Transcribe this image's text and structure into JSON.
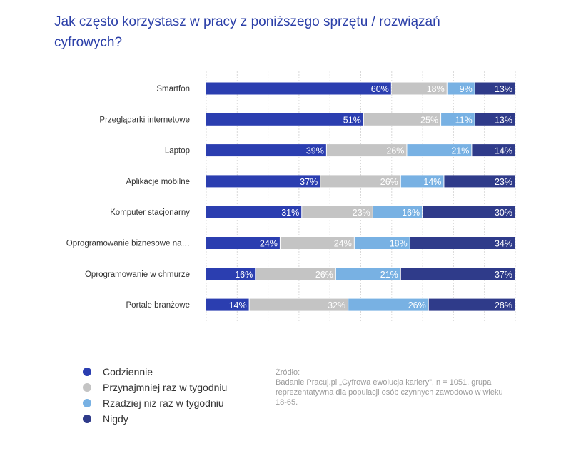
{
  "chart_data": {
    "type": "bar",
    "orientation": "horizontal-stacked",
    "title": "Jak często korzystasz w pracy z poniższego sprzętu / rozwiązań cyfrowych?",
    "categories": [
      "Smartfon",
      "Przeglądarki internetowe",
      "Laptop",
      "Aplikacje mobilne",
      "Komputer stacjonarny",
      "Oprogramowanie biznesowe na…",
      "Oprogramowanie w chmurze",
      "Portale branżowe"
    ],
    "series": [
      {
        "name": "Codziennie",
        "color": "#2b3eb0",
        "values": [
          60,
          51,
          39,
          37,
          31,
          24,
          16,
          14
        ]
      },
      {
        "name": "Przynajmniej raz w tygodniu",
        "color": "#c4c4c4",
        "values": [
          18,
          25,
          26,
          26,
          23,
          24,
          26,
          32
        ]
      },
      {
        "name": "Rzadziej niż raz w tygodniu",
        "color": "#78b1e3",
        "values": [
          9,
          11,
          21,
          14,
          16,
          18,
          21,
          26
        ]
      },
      {
        "name": "Nigdy",
        "color": "#2f3b8a",
        "values": [
          13,
          13,
          14,
          23,
          30,
          34,
          37,
          28
        ]
      }
    ],
    "value_suffix": "%",
    "xlim": [
      0,
      100
    ],
    "grid": true,
    "legend_position": "bottom-left"
  },
  "source": {
    "label": "Źródło:",
    "text": "Badanie Pracuj.pl „Cyfrowa ewolucja kariery”, n = 1051, grupa reprezentatywna dla populacji osób czynnych zawodowo w wieku 18-65."
  }
}
